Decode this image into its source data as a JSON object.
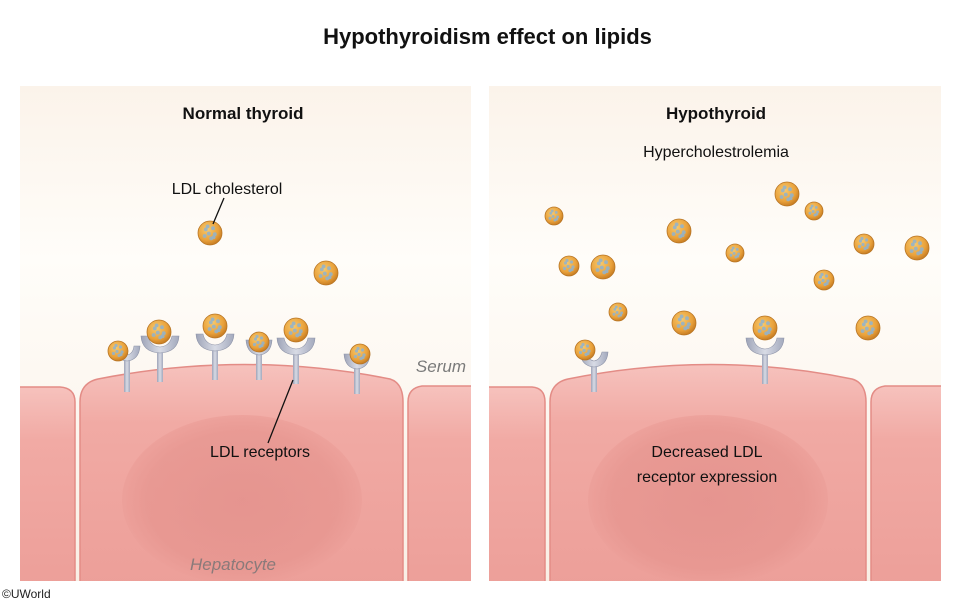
{
  "title": "Hypothyroidism effect on lipids",
  "panels": {
    "normal": {
      "heading": "Normal thyroid",
      "ldl_label": "LDL cholesterol",
      "receptor_label": "LDL receptors",
      "serum_label": "Serum",
      "cell_label": "Hepatocyte"
    },
    "hypo": {
      "heading": "Hypothyroid",
      "subheading": "Hypercholestrolemia",
      "receptor_text_line1": "Decreased LDL",
      "receptor_text_line2": "receptor expression"
    }
  },
  "copyright": "©UWorld",
  "colors": {
    "cell_fill": "#f1a9a4",
    "cell_edge": "#e48c86",
    "serum_top": "#fffdf8",
    "serum_bottom": "#f8eee2",
    "particle": "#e9a13b",
    "receptor": "#b7bccc"
  }
}
